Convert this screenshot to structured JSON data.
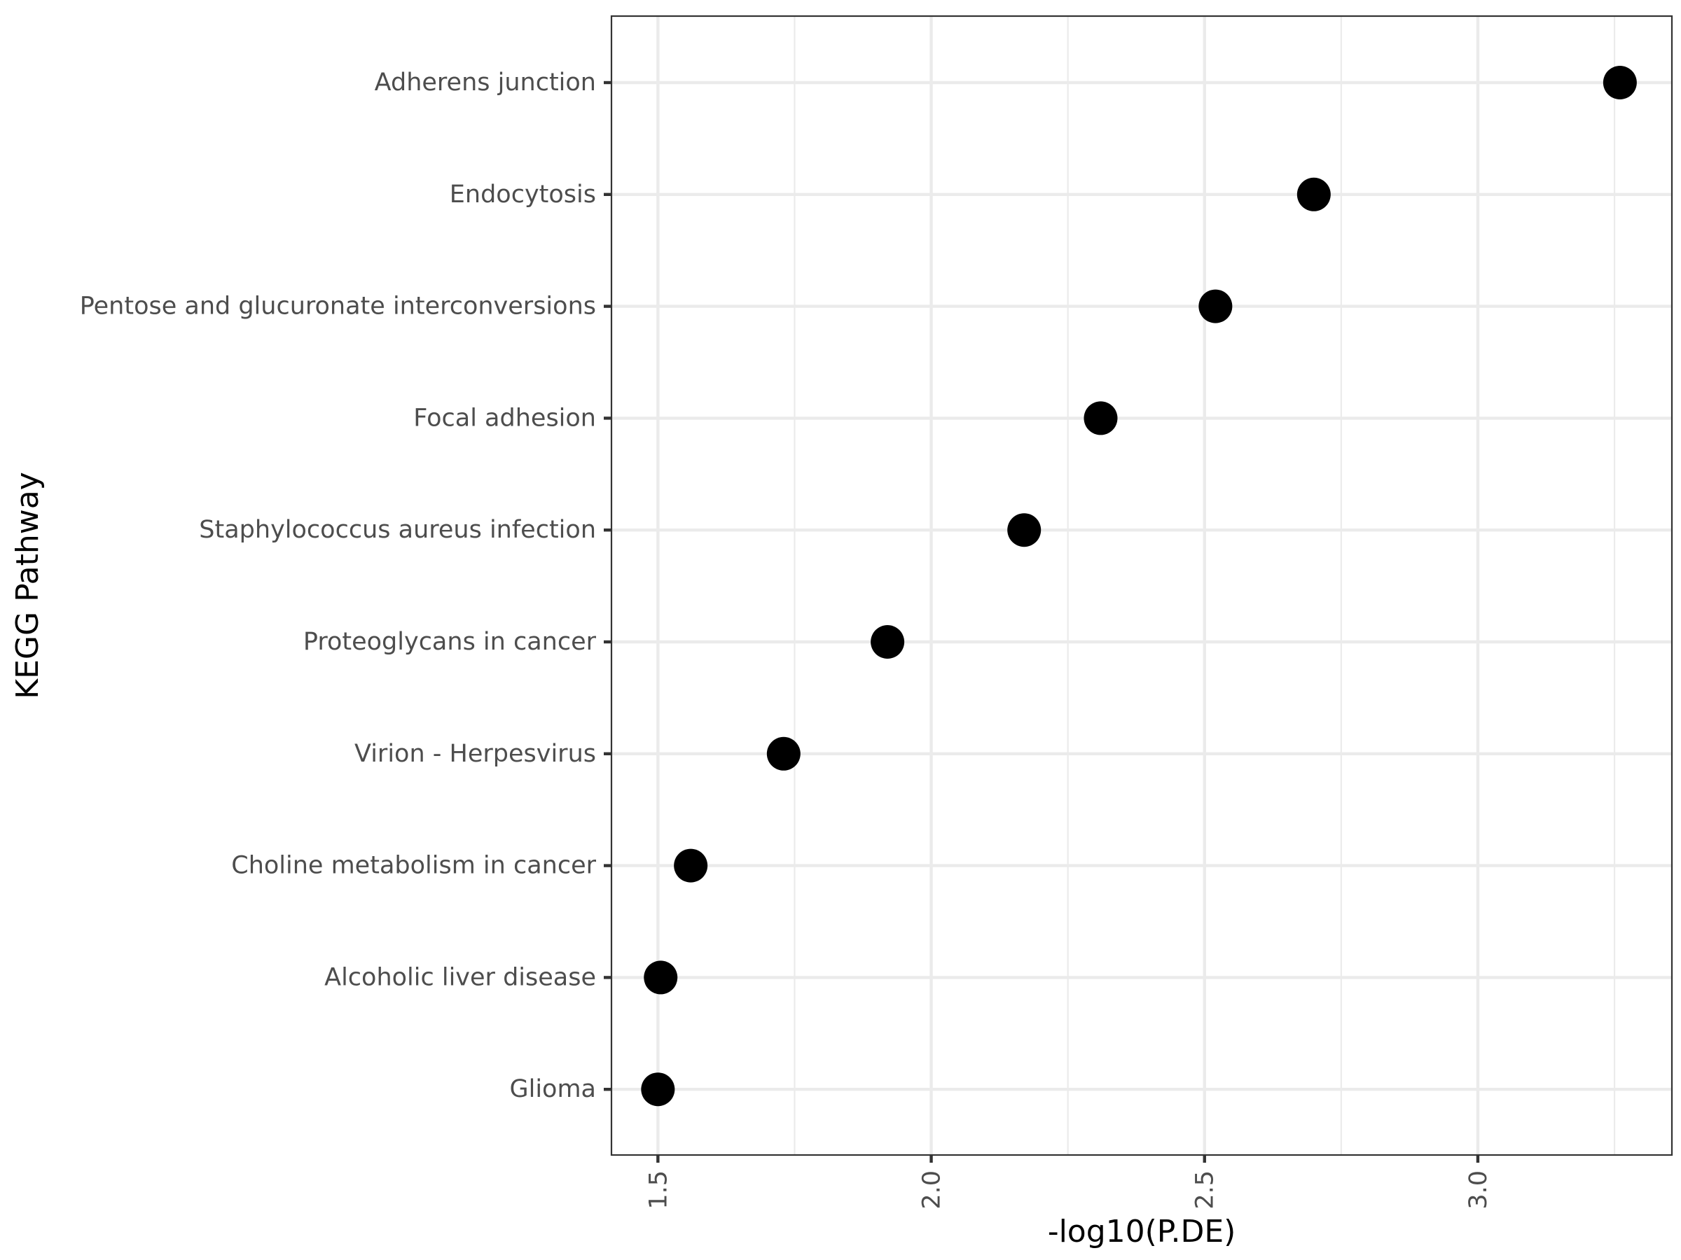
{
  "chart_data": {
    "type": "scatter",
    "xlabel": "-log10(P.DE)",
    "ylabel": "KEGG Pathway",
    "xlim": [
      1.415,
      3.355
    ],
    "x_ticks": [
      "1.5",
      "2.0",
      "2.5",
      "3.0"
    ],
    "x_tick_values": [
      1.5,
      2.0,
      2.5,
      3.0
    ],
    "x_minor_tick_values": [
      1.75,
      2.25,
      2.75,
      3.25
    ],
    "grid": true,
    "legend": "none",
    "point_color": "#000000",
    "categories": [
      "Adherens junction",
      "Endocytosis",
      "Pentose and glucuronate interconversions",
      "Focal adhesion",
      "Staphylococcus aureus infection",
      "Proteoglycans in cancer",
      "Virion - Herpesvirus",
      "Choline metabolism in cancer",
      "Alcoholic liver disease",
      "Glioma"
    ],
    "values": [
      3.26,
      2.7,
      2.52,
      2.31,
      2.17,
      1.92,
      1.73,
      1.56,
      1.505,
      1.5
    ]
  }
}
